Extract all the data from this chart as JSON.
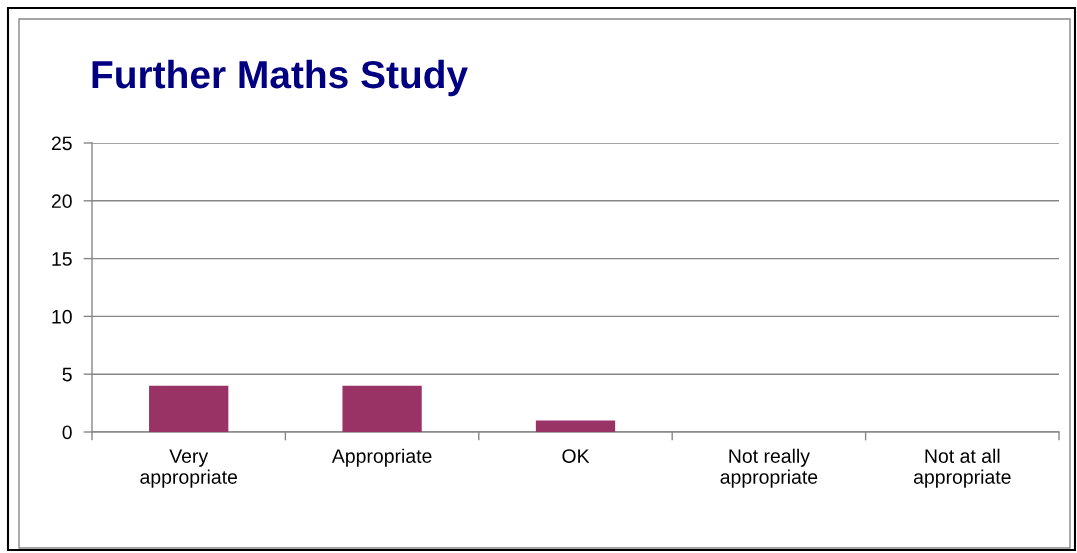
{
  "chart_data": {
    "type": "bar",
    "title": "Further Maths Study",
    "categories": [
      "Very\nappropriate",
      "Appropriate",
      "OK",
      "Not really\nappropriate",
      "Not at all\nappropriate"
    ],
    "values": [
      4,
      4,
      1,
      0,
      0
    ],
    "color": "#993366",
    "ylim": [
      0,
      25
    ],
    "yticks": [
      0,
      5,
      10,
      15,
      20,
      25
    ],
    "grid": "y"
  }
}
